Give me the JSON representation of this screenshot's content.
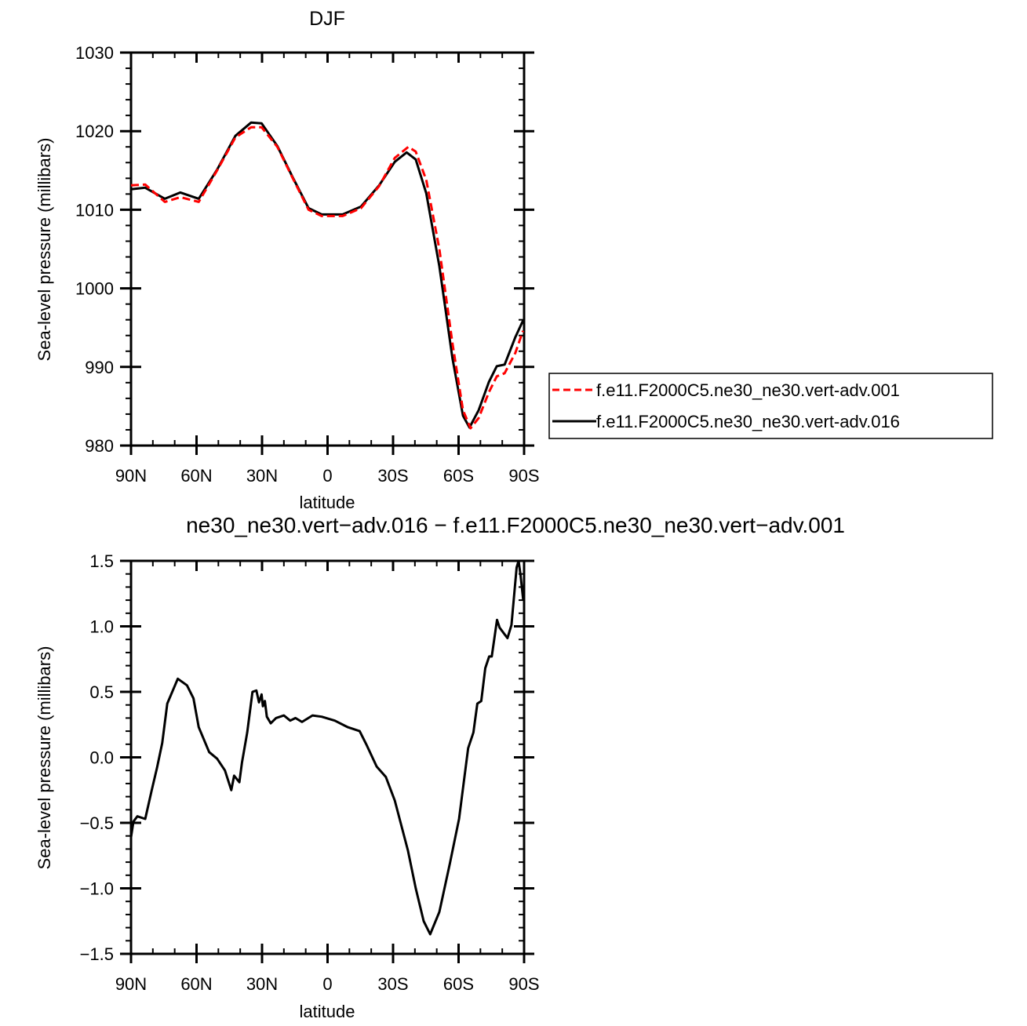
{
  "chart_data": [
    {
      "type": "line",
      "title": "DJF",
      "xlabel": "latitude",
      "ylabel": "Sea-level pressure (millibars)",
      "xlim": [
        90,
        -90
      ],
      "ylim": [
        980,
        1030
      ],
      "x_tick_values": [
        90,
        60,
        30,
        0,
        -30,
        -60,
        -90
      ],
      "x_tick_labels": [
        "90N",
        "60N",
        "30N",
        "0",
        "30S",
        "60S",
        "90S"
      ],
      "y_tick_values": [
        980,
        990,
        1000,
        1010,
        1020,
        1030
      ],
      "y_tick_labels": [
        "980",
        "990",
        "1000",
        "1010",
        "1020",
        "1030"
      ],
      "grid": false,
      "legend_placement": "right",
      "series": [
        {
          "name": "f.e11.F2000C5.ne30_ne30.vert-adv.001",
          "color": "#ff0000",
          "dash": "dashed",
          "x": [
            90,
            83.5,
            74.5,
            67.4,
            59,
            50.6,
            42.2,
            35,
            30.2,
            23,
            15.9,
            8.7,
            2.7,
            -6.9,
            -15.3,
            -23.6,
            -30.8,
            -37,
            -40.4,
            -45.2,
            -51.2,
            -57.2,
            -62,
            -65.5,
            -69.2,
            -73.9,
            -77.5,
            -81.1,
            -86,
            -89.5
          ],
          "y": [
            1013.1,
            1013.2,
            1011.0,
            1011.6,
            1011.0,
            1015.0,
            1019.2,
            1020.5,
            1020.5,
            1018.0,
            1014.0,
            1010.0,
            1009.2,
            1009.2,
            1010.2,
            1013.0,
            1016.6,
            1018.0,
            1017.4,
            1013.8,
            1005.0,
            993.0,
            984.5,
            982.2,
            983.5,
            986.8,
            988.8,
            989.2,
            991.8,
            994.6
          ]
        },
        {
          "name": "f.e11.F2000C5.ne30_ne30.vert-adv.016",
          "color": "#000000",
          "dash": "solid",
          "x": [
            90,
            83.5,
            74.5,
            67.4,
            59,
            50.6,
            42.2,
            35,
            30.2,
            23,
            15.9,
            8.7,
            2.7,
            -6.9,
            -15.3,
            -23.6,
            -30.8,
            -36.2,
            -40.4,
            -45.2,
            -51.2,
            -57.2,
            -62,
            -65,
            -69.2,
            -73.9,
            -77.5,
            -81.1,
            -86,
            -89.5
          ],
          "y": [
            1012.6,
            1012.8,
            1011.4,
            1012.2,
            1011.4,
            1015.1,
            1019.4,
            1021.1,
            1021.0,
            1018.1,
            1014.1,
            1010.2,
            1009.4,
            1009.4,
            1010.4,
            1013.1,
            1016.1,
            1017.3,
            1016.4,
            1012.1,
            1002.8,
            991.1,
            983.8,
            982.3,
            984.5,
            988.1,
            990.1,
            990.3,
            993.8,
            995.9
          ]
        }
      ]
    },
    {
      "type": "line",
      "title": "ne30_ne30.vert−adv.016 − f.e11.F2000C5.ne30_ne30.vert−adv.001",
      "xlabel": "latitude",
      "ylabel": "Sea-level pressure (millibars)",
      "xlim": [
        90,
        -90
      ],
      "ylim": [
        -1.5,
        1.5
      ],
      "x_tick_values": [
        90,
        60,
        30,
        0,
        -30,
        -60,
        -90
      ],
      "x_tick_labels": [
        "90N",
        "60N",
        "30N",
        "0",
        "30S",
        "60S",
        "90S"
      ],
      "y_tick_values": [
        -1.5,
        -1.0,
        -0.5,
        0.0,
        0.5,
        1.0,
        1.5
      ],
      "y_tick_labels": [
        "−1.5",
        "−1.0",
        "−0.5",
        "0.0",
        "0.5",
        "1.0",
        "1.5"
      ],
      "grid": false,
      "series": [
        {
          "color": "#000000",
          "dash": "solid",
          "x": [
            90,
            88.9,
            87.1,
            83.5,
            80.5,
            78.1,
            75.7,
            73.4,
            68.6,
            64.4,
            61.4,
            59,
            54.2,
            50.6,
            47,
            44.1,
            42.8,
            40.4,
            39.2,
            36.8,
            34.4,
            32.6,
            31.4,
            30.2,
            29.6,
            28.7,
            27.8,
            26,
            23.6,
            20.0,
            17.1,
            14.7,
            11.7,
            6.9,
            2.7,
            -3.3,
            -9.3,
            -14.7,
            -17.7,
            -22.5,
            -26.7,
            -30.8,
            -36.8,
            -40.4,
            -44,
            -47,
            -51.2,
            -56,
            -60.2,
            -64.4,
            -66.8,
            -68.6,
            -70.4,
            -72.2,
            -74,
            -75.2,
            -77.6,
            -78.8,
            -82.4,
            -84.2,
            -86.6,
            -87.5,
            -88.4,
            -89.6
          ],
          "y": [
            -0.61,
            -0.49,
            -0.45,
            -0.47,
            -0.25,
            -0.08,
            0.11,
            0.41,
            0.6,
            0.55,
            0.45,
            0.23,
            0.04,
            -0.01,
            -0.1,
            -0.25,
            -0.14,
            -0.19,
            -0.04,
            0.19,
            0.5,
            0.51,
            0.42,
            0.48,
            0.39,
            0.43,
            0.31,
            0.26,
            0.3,
            0.32,
            0.28,
            0.3,
            0.27,
            0.32,
            0.31,
            0.28,
            0.23,
            0.2,
            0.1,
            -0.07,
            -0.15,
            -0.33,
            -0.71,
            -1.0,
            -1.25,
            -1.35,
            -1.18,
            -0.81,
            -0.47,
            0.07,
            0.19,
            0.41,
            0.43,
            0.68,
            0.77,
            0.77,
            1.05,
            0.99,
            0.91,
            1.01,
            1.45,
            1.5,
            1.39,
            1.2
          ]
        }
      ]
    }
  ]
}
